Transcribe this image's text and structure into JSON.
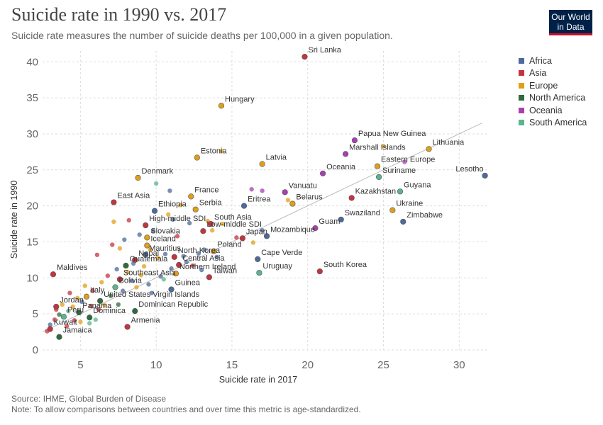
{
  "header": {
    "title": "Suicide rate in 1990 vs. 2017",
    "subtitle": "Suicide rate measures the number of suicide deaths per 100,000 in a given population.",
    "logo_line1": "Our World",
    "logo_line2": "in Data"
  },
  "footer": {
    "source": "Source: IHME, Global Burden of Disease",
    "note": "Note: To allow comparisons between countries and over time this metric is age-standardized."
  },
  "legend": {
    "items": [
      {
        "label": "Africa",
        "color": "#4c6a9c"
      },
      {
        "label": "Asia",
        "color": "#c4343f"
      },
      {
        "label": "Europe",
        "color": "#e09f1a"
      },
      {
        "label": "North America",
        "color": "#2e6b3e"
      },
      {
        "label": "Oceania",
        "color": "#a83fb0"
      },
      {
        "label": "South America",
        "color": "#5ab58d"
      }
    ]
  },
  "chart_data": {
    "type": "scatter",
    "title": "Suicide rate in 1990 vs. 2017",
    "xlabel": "Suicide rate in 2017",
    "ylabel": "Suicide rate in 1990",
    "xlim": [
      2.5,
      32
    ],
    "ylim": [
      0,
      41.5
    ],
    "xticks": [
      5,
      10,
      15,
      20,
      25,
      30
    ],
    "yticks": [
      0,
      5,
      10,
      15,
      20,
      25,
      30,
      35,
      40
    ],
    "grid": true,
    "legend_position": "right",
    "reference_line": {
      "from": [
        2.5,
        2.5
      ],
      "to": [
        31.5,
        31.5
      ]
    },
    "labeled_points": [
      {
        "label": "Sri Lanka",
        "x": 19.8,
        "y": 40.7,
        "region": "Asia"
      },
      {
        "label": "Hungary",
        "x": 14.3,
        "y": 33.9,
        "region": "Europe"
      },
      {
        "label": "Papua New Guinea",
        "x": 23.1,
        "y": 29.1,
        "region": "Oceania"
      },
      {
        "label": "Lithuania",
        "x": 28.0,
        "y": 27.9,
        "region": "Europe"
      },
      {
        "label": "Marshall Islands",
        "x": 22.5,
        "y": 27.2,
        "region": "Oceania"
      },
      {
        "label": "Estonia",
        "x": 12.7,
        "y": 26.7,
        "region": "Europe"
      },
      {
        "label": "Latvia",
        "x": 17.0,
        "y": 25.8,
        "region": "Europe"
      },
      {
        "label": "Eastern Europe",
        "x": 24.6,
        "y": 25.5,
        "region": "Europe"
      },
      {
        "label": "Oceania",
        "x": 21.0,
        "y": 24.5,
        "region": "Oceania"
      },
      {
        "label": "Denmark",
        "x": 8.8,
        "y": 23.9,
        "region": "Europe"
      },
      {
        "label": "Suriname",
        "x": 24.7,
        "y": 24.0,
        "region": "South America"
      },
      {
        "label": "Lesotho",
        "x": 31.7,
        "y": 24.2,
        "region": "Africa"
      },
      {
        "label": "Vanuatu",
        "x": 18.5,
        "y": 21.9,
        "region": "Oceania"
      },
      {
        "label": "Guyana",
        "x": 26.1,
        "y": 22.0,
        "region": "South America"
      },
      {
        "label": "France",
        "x": 12.3,
        "y": 21.3,
        "region": "Europe"
      },
      {
        "label": "Kazakhstan",
        "x": 22.9,
        "y": 21.1,
        "region": "Asia"
      },
      {
        "label": "East Asia",
        "x": 7.2,
        "y": 20.5,
        "region": "Asia"
      },
      {
        "label": "Belarus",
        "x": 19.0,
        "y": 20.3,
        "region": "Europe"
      },
      {
        "label": "Eritrea",
        "x": 15.8,
        "y": 20.0,
        "region": "Africa"
      },
      {
        "label": "Serbia",
        "x": 12.6,
        "y": 19.5,
        "region": "Europe"
      },
      {
        "label": "Ethiopia",
        "x": 9.9,
        "y": 19.3,
        "region": "Africa"
      },
      {
        "label": "Ukraine",
        "x": 25.6,
        "y": 19.4,
        "region": "Europe"
      },
      {
        "label": "Swaziland",
        "x": 22.2,
        "y": 18.1,
        "region": "Africa"
      },
      {
        "label": "Zimbabwe",
        "x": 26.3,
        "y": 17.8,
        "region": "Africa"
      },
      {
        "label": "South Asia",
        "x": 13.6,
        "y": 17.5,
        "region": "Asia"
      },
      {
        "label": "High-middle SDI",
        "x": 9.3,
        "y": 17.3,
        "region": "Asia"
      },
      {
        "label": "Guam",
        "x": 20.5,
        "y": 16.9,
        "region": "Oceania"
      },
      {
        "label": "Low-middle SDI",
        "x": 13.1,
        "y": 16.5,
        "region": "Asia"
      },
      {
        "label": "Mozambique",
        "x": 17.3,
        "y": 15.8,
        "region": "Africa"
      },
      {
        "label": "Slovakia",
        "x": 9.4,
        "y": 15.6,
        "region": "Europe"
      },
      {
        "label": "Japan",
        "x": 15.7,
        "y": 15.5,
        "region": "Asia"
      },
      {
        "label": "Iceland",
        "x": 9.4,
        "y": 14.5,
        "region": "Europe"
      },
      {
        "label": "Poland",
        "x": 13.8,
        "y": 13.7,
        "region": "Europe"
      },
      {
        "label": "Mauritius",
        "x": 9.3,
        "y": 13.2,
        "region": "Africa"
      },
      {
        "label": "North Korea",
        "x": 11.2,
        "y": 12.9,
        "region": "Asia"
      },
      {
        "label": "Cape Verde",
        "x": 16.7,
        "y": 12.6,
        "region": "Africa"
      },
      {
        "label": "Nepal",
        "x": 8.6,
        "y": 12.5,
        "region": "Asia"
      },
      {
        "label": "Central Asia",
        "x": 11.5,
        "y": 11.8,
        "region": "Asia"
      },
      {
        "label": "Guatemala",
        "x": 8.0,
        "y": 11.7,
        "region": "North America"
      },
      {
        "label": "Maldives",
        "x": 3.2,
        "y": 10.5,
        "region": "Asia"
      },
      {
        "label": "Uruguay",
        "x": 16.8,
        "y": 10.7,
        "region": "South America"
      },
      {
        "label": "South Korea",
        "x": 20.8,
        "y": 10.9,
        "region": "Asia"
      },
      {
        "label": "Northern Ireland",
        "x": 11.3,
        "y": 10.6,
        "region": "Europe"
      },
      {
        "label": "Taiwan",
        "x": 13.5,
        "y": 10.1,
        "region": "Asia"
      },
      {
        "label": "Southeast Asia",
        "x": 7.6,
        "y": 9.8,
        "region": "Asia"
      },
      {
        "label": "Bolivia",
        "x": 7.3,
        "y": 8.7,
        "region": "South America"
      },
      {
        "label": "Guinea",
        "x": 11.0,
        "y": 8.4,
        "region": "Africa"
      },
      {
        "label": "Italy",
        "x": 5.4,
        "y": 7.4,
        "region": "Europe"
      },
      {
        "label": "United States Virgin Islands",
        "x": 6.3,
        "y": 6.8,
        "region": "North America"
      },
      {
        "label": "Jordan",
        "x": 3.4,
        "y": 6.0,
        "region": "Asia"
      },
      {
        "label": "Panama",
        "x": 4.9,
        "y": 5.2,
        "region": "North America"
      },
      {
        "label": "Dominican Republic",
        "x": 8.6,
        "y": 5.4,
        "region": "North America"
      },
      {
        "label": "Peru",
        "x": 3.9,
        "y": 4.6,
        "region": "South America"
      },
      {
        "label": "Dominica",
        "x": 5.6,
        "y": 4.5,
        "region": "North America"
      },
      {
        "label": "Armenia",
        "x": 8.1,
        "y": 3.2,
        "region": "Asia"
      },
      {
        "label": "Kuwait",
        "x": 3.0,
        "y": 2.9,
        "region": "Asia"
      },
      {
        "label": "Jamaica",
        "x": 3.6,
        "y": 1.8,
        "region": "North America"
      }
    ],
    "unlabeled_points": [
      {
        "x": 2.8,
        "y": 2.6,
        "region": "Asia"
      },
      {
        "x": 3.0,
        "y": 3.5,
        "region": "Africa"
      },
      {
        "x": 3.3,
        "y": 4.2,
        "region": "Asia"
      },
      {
        "x": 3.4,
        "y": 5.6,
        "region": "Asia"
      },
      {
        "x": 3.6,
        "y": 4.9,
        "region": "North America"
      },
      {
        "x": 3.8,
        "y": 6.3,
        "region": "Europe"
      },
      {
        "x": 4.1,
        "y": 3.3,
        "region": "Asia"
      },
      {
        "x": 4.2,
        "y": 5.4,
        "region": "South America"
      },
      {
        "x": 4.3,
        "y": 7.9,
        "region": "Asia"
      },
      {
        "x": 4.5,
        "y": 6.0,
        "region": "Europe"
      },
      {
        "x": 4.6,
        "y": 4.1,
        "region": "Asia"
      },
      {
        "x": 4.8,
        "y": 7.2,
        "region": "Europe"
      },
      {
        "x": 5.0,
        "y": 3.9,
        "region": "Europe"
      },
      {
        "x": 5.1,
        "y": 6.7,
        "region": "Africa"
      },
      {
        "x": 5.3,
        "y": 8.9,
        "region": "Europe"
      },
      {
        "x": 5.6,
        "y": 3.7,
        "region": "South America"
      },
      {
        "x": 5.7,
        "y": 6.1,
        "region": "Asia"
      },
      {
        "x": 5.8,
        "y": 8.2,
        "region": "Asia"
      },
      {
        "x": 6.0,
        "y": 4.2,
        "region": "South America"
      },
      {
        "x": 6.1,
        "y": 13.2,
        "region": "Asia"
      },
      {
        "x": 6.2,
        "y": 5.6,
        "region": "Asia"
      },
      {
        "x": 6.4,
        "y": 9.4,
        "region": "Europe"
      },
      {
        "x": 6.6,
        "y": 6.2,
        "region": "Europe"
      },
      {
        "x": 6.8,
        "y": 10.3,
        "region": "Asia"
      },
      {
        "x": 7.0,
        "y": 7.5,
        "region": "North America"
      },
      {
        "x": 7.1,
        "y": 14.6,
        "region": "Asia"
      },
      {
        "x": 7.2,
        "y": 17.8,
        "region": "Europe"
      },
      {
        "x": 7.4,
        "y": 11.2,
        "region": "Africa"
      },
      {
        "x": 7.5,
        "y": 6.3,
        "region": "North America"
      },
      {
        "x": 7.6,
        "y": 14.1,
        "region": "Europe"
      },
      {
        "x": 7.8,
        "y": 8.2,
        "region": "Africa"
      },
      {
        "x": 7.9,
        "y": 15.3,
        "region": "Africa"
      },
      {
        "x": 8.1,
        "y": 10.8,
        "region": "Europe"
      },
      {
        "x": 8.2,
        "y": 18.0,
        "region": "Asia"
      },
      {
        "x": 8.4,
        "y": 9.6,
        "region": "Africa"
      },
      {
        "x": 8.5,
        "y": 12.0,
        "region": "Africa"
      },
      {
        "x": 8.7,
        "y": 8.7,
        "region": "Europe"
      },
      {
        "x": 8.9,
        "y": 16.0,
        "region": "Africa"
      },
      {
        "x": 9.0,
        "y": 10.4,
        "region": "Europe"
      },
      {
        "x": 9.2,
        "y": 11.6,
        "region": "Europe"
      },
      {
        "x": 9.5,
        "y": 9.1,
        "region": "Africa"
      },
      {
        "x": 9.6,
        "y": 13.9,
        "region": "Europe"
      },
      {
        "x": 9.7,
        "y": 7.9,
        "region": "Africa"
      },
      {
        "x": 9.8,
        "y": 16.5,
        "region": "Africa"
      },
      {
        "x": 10.0,
        "y": 23.1,
        "region": "South America"
      },
      {
        "x": 10.1,
        "y": 12.8,
        "region": "Europe"
      },
      {
        "x": 10.3,
        "y": 10.2,
        "region": "Africa"
      },
      {
        "x": 10.5,
        "y": 9.8,
        "region": "South America"
      },
      {
        "x": 10.6,
        "y": 13.3,
        "region": "Africa"
      },
      {
        "x": 10.8,
        "y": 18.8,
        "region": "Europe"
      },
      {
        "x": 10.9,
        "y": 22.1,
        "region": "Africa"
      },
      {
        "x": 11.0,
        "y": 11.3,
        "region": "Africa"
      },
      {
        "x": 11.1,
        "y": 18.1,
        "region": "Africa"
      },
      {
        "x": 11.4,
        "y": 15.8,
        "region": "Asia"
      },
      {
        "x": 11.6,
        "y": 20.1,
        "region": "Europe"
      },
      {
        "x": 11.8,
        "y": 13.0,
        "region": "Africa"
      },
      {
        "x": 12.0,
        "y": 12.2,
        "region": "Africa"
      },
      {
        "x": 12.2,
        "y": 17.6,
        "region": "Africa"
      },
      {
        "x": 12.4,
        "y": 11.7,
        "region": "Asia"
      },
      {
        "x": 12.8,
        "y": 13.4,
        "region": "Africa"
      },
      {
        "x": 13.0,
        "y": 11.1,
        "region": "Africa"
      },
      {
        "x": 13.2,
        "y": 13.9,
        "region": "Africa"
      },
      {
        "x": 13.4,
        "y": 17.9,
        "region": "Europe"
      },
      {
        "x": 13.7,
        "y": 16.6,
        "region": "Europe"
      },
      {
        "x": 14.0,
        "y": 12.9,
        "region": "Africa"
      },
      {
        "x": 14.3,
        "y": 27.6,
        "region": "Europe"
      },
      {
        "x": 14.4,
        "y": 17.5,
        "region": "Europe"
      },
      {
        "x": 15.3,
        "y": 15.6,
        "region": "Asia"
      },
      {
        "x": 16.4,
        "y": 14.9,
        "region": "Europe"
      },
      {
        "x": 17.0,
        "y": 16.6,
        "region": "Africa"
      },
      {
        "x": 16.3,
        "y": 22.3,
        "region": "Oceania"
      },
      {
        "x": 17.0,
        "y": 22.1,
        "region": "Oceania"
      },
      {
        "x": 18.7,
        "y": 20.8,
        "region": "Europe"
      },
      {
        "x": 25.0,
        "y": 28.3,
        "region": "Europe"
      },
      {
        "x": 26.4,
        "y": 26.1,
        "region": "Oceania"
      }
    ]
  }
}
